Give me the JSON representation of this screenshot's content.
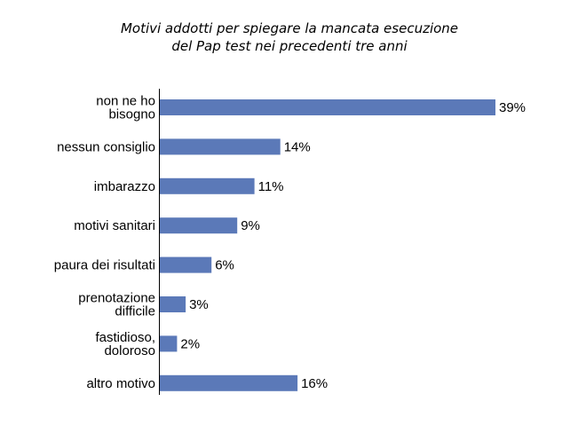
{
  "chart_data": {
    "type": "bar",
    "orientation": "horizontal",
    "title_lines": [
      "Motivi addotti per spiegare la mancata esecuzione",
      "del Pap test nei precedenti tre anni"
    ],
    "categories": [
      "non ne ho bisogno",
      "nessun consiglio",
      "imbarazzo",
      "motivi sanitari",
      "paura dei risultati",
      "prenotazione difficile",
      "fastidioso, doloroso",
      "altro motivo"
    ],
    "category_label_lines": [
      [
        "non ne ho",
        "bisogno"
      ],
      [
        "nessun consiglio"
      ],
      [
        "imbarazzo"
      ],
      [
        "motivi sanitari"
      ],
      [
        "paura dei risultati"
      ],
      [
        "prenotazione",
        "difficile"
      ],
      [
        "fastidioso,",
        "doloroso"
      ],
      [
        "altro motivo"
      ]
    ],
    "values": [
      39,
      14,
      11,
      9,
      6,
      3,
      2,
      16
    ],
    "value_labels": [
      "39%",
      "14%",
      "11%",
      "9%",
      "6%",
      "3%",
      "2%",
      "16%"
    ],
    "unit": "%",
    "xlim": [
      0,
      39
    ],
    "grid": false,
    "legend": "none",
    "bar_color": "#5b79b8"
  }
}
